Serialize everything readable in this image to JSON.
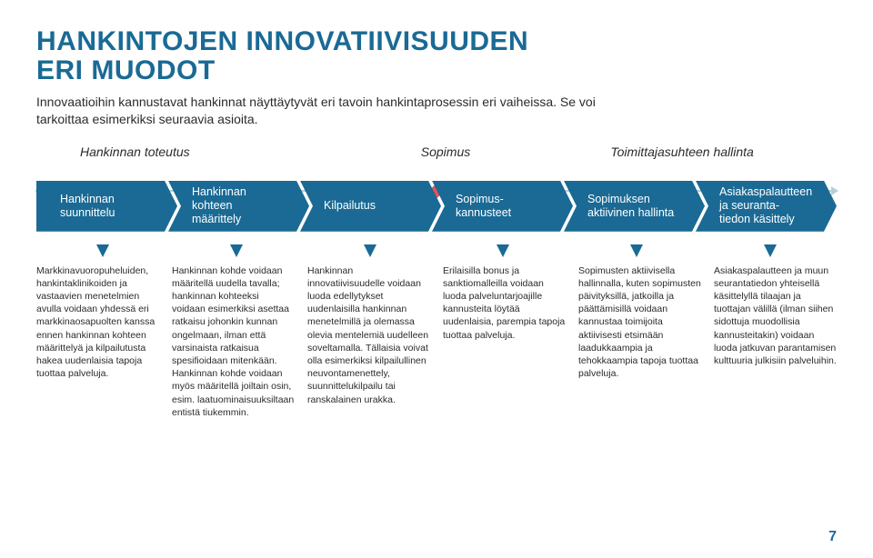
{
  "colors": {
    "title": "#1a6a95",
    "body": "#2b2b2b",
    "stage_text": "#2b2b2b",
    "line": "#b9cdd6",
    "diamond": "#e4515a",
    "chevron": "#1a6a95",
    "arrow": "#1a6a95",
    "pagenum": "#1a6a95"
  },
  "title_fontsize": 30,
  "title_lineheight": 1.05,
  "intro_fontsize": 14,
  "stage_fontsize": 14,
  "title_line1": "HANKINTOJEN INNOVATIIVISUUDEN",
  "title_line2": "ERI MUODOT",
  "intro": "Innovaatioihin kannustavat hankinnat näyttäytyvät eri tavoin hankintaprosessin eri vaiheissa. Se voi tarkoittaa esimerkiksi seuraavia asioita.",
  "stages": {
    "left": "Hankinnan toteutus",
    "center": "Sopimus",
    "right": "Toimittajasuhteen hallinta"
  },
  "chevrons": [
    "Hankinnan\nsuunnittelu",
    "Hankinnan\nkohteen\nmäärittely",
    "Kilpailutus",
    "Sopimus-\nkannusteet",
    "Sopimuksen\naktiivinen hallinta",
    "Asiakaspalautteen\nja seuranta-\ntiedon käsittely"
  ],
  "columns": [
    "Markkinavuoropuheluiden, hankintaklinikoiden ja vastaavien menetelmien avulla voidaan yhdessä eri markkinaosapuolten kanssa ennen hankinnan kohteen määrittelyä ja kilpailutusta hakea uudenlaisia tapoja tuottaa palveluja.",
    "Hankinnan kohde voidaan määritellä uudella tavalla; hankinnan kohteeksi voidaan esimerkiksi asettaa ratkaisu johonkin kunnan ongelmaan, ilman että varsinaista ratkaisua spesifioidaan mitenkään. Hankinnan kohde voidaan myös määritellä joiltain osin, esim. laatuominaisuuksiltaan entistä tiukemmin.",
    "Hankinnan innovatiivisuudelle voidaan luoda edellytykset uudenlaisilla hankinnan menetelmillä ja olemassa olevia mentelemiä uudelleen soveltamalla. Tällaisia voivat olla esimerkiksi kilpailullinen neuvontamenettely, suunnittelukilpailu tai ranskalainen urakka.",
    "Erilaisilla bonus ja sanktiomalleilla voidaan luoda palveluntarjoajille kannusteita löytää uudenlaisia, parempia tapoja tuottaa palveluja.",
    "Sopimusten aktiivisella hallinnalla, kuten sopimusten päivityksillä, jatkoilla ja päättämisillä voidaan kannustaa toimijoita aktiivisesti etsimään laadukkaampia ja tehokkaampia tapoja tuottaa palveluja.",
    "Asiakaspalautteen ja muun seurantatiedon yhteisellä käsittelyllä tilaajan ja tuottajan välillä (ilman siihen sidottuja muodollisia kannusteitakin) voidaan luoda jatkuvan parantamisen kulttuuria julkisiin palveluihin."
  ],
  "page_number": "7",
  "pagenum_fontsize": 16
}
